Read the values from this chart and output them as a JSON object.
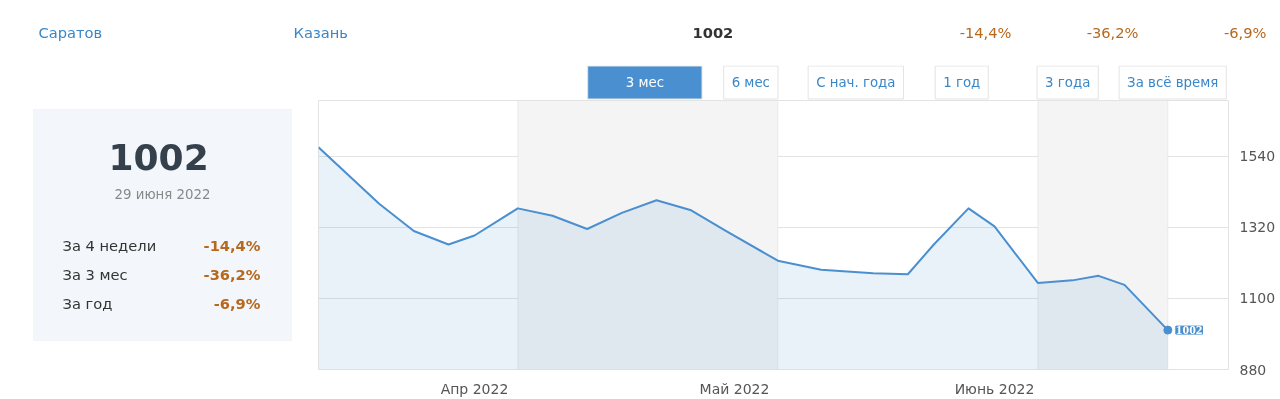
{
  "chart_data": {
    "type": "area",
    "x": [
      "2022-03-14",
      "2022-03-21",
      "2022-03-25",
      "2022-03-29",
      "2022-04-01",
      "2022-04-06",
      "2022-04-10",
      "2022-04-14",
      "2022-04-18",
      "2022-04-22",
      "2022-04-26",
      "2022-04-30",
      "2022-05-06",
      "2022-05-11",
      "2022-05-17",
      "2022-05-21",
      "2022-05-24",
      "2022-05-28",
      "2022-05-31",
      "2022-06-05",
      "2022-06-09",
      "2022-06-12",
      "2022-06-15",
      "2022-06-20"
    ],
    "series": [
      {
        "color": "#4a8fd0",
        "values": [
          1568,
          1393,
          1309,
          1267,
          1295,
          1379,
          1356,
          1315,
          1365,
          1404,
          1373,
          1309,
          1217,
          1189,
          1178,
          1175,
          1267,
          1379,
          1323,
          1148,
          1156,
          1170,
          1142,
          1002
        ],
        "value_labels": [
          null,
          null,
          null,
          null,
          null,
          null,
          null,
          null,
          null,
          null,
          null,
          null,
          null,
          null,
          null,
          null,
          null,
          null,
          null,
          null,
          null,
          null,
          null,
          "1002"
        ]
      }
    ],
    "xlim": [
      "2022-03-14",
      "2022-06-27"
    ],
    "xticks": [
      {
        "value": "2022-04-01",
        "label": "Апр 2022"
      },
      {
        "value": "2022-05-01",
        "label": "Май 2022"
      },
      {
        "value": "2022-05-31",
        "label": "Июнь 2022"
      }
    ],
    "ylim": [
      880,
      1713
    ],
    "yticks": [
      880,
      1100,
      1320,
      1540
    ],
    "grid": "y",
    "bands": [
      {
        "axis": "x",
        "from": "2022-04-06",
        "to": "2022-05-06",
        "color": "#f4f4f4"
      },
      {
        "axis": "x",
        "from": "2022-06-05",
        "to": "2022-06-20",
        "color": "#f4f4f4"
      }
    ],
    "annotations": [
      "Саратов",
      "Казань",
      "1002",
      "-14,4%",
      "-36,2%",
      "-6,9%",
      "3 мес",
      "6 мес",
      "С нач. года",
      "1 год",
      "3 года",
      "За всё время",
      "1002",
      "29 июня 2022",
      "За 4 недели",
      "-14,4%",
      "За 3 мес",
      "-36,2%",
      "За год",
      "-6,9%"
    ]
  }
}
